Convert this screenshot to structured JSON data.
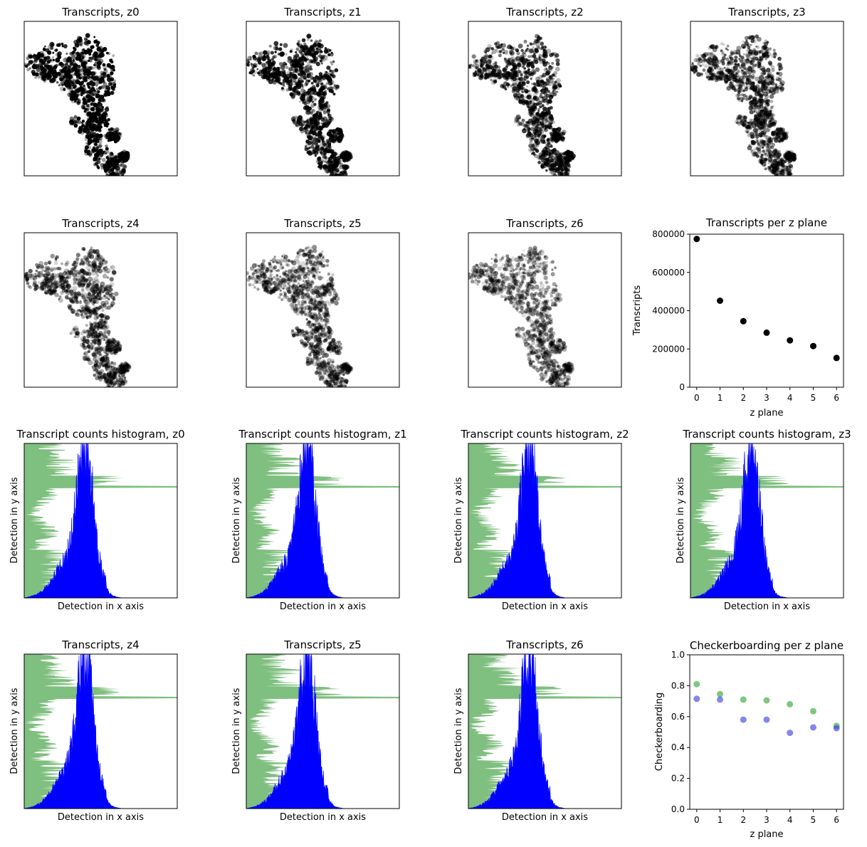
{
  "figure": {
    "image_panels": [
      {
        "title": "Transcripts, z0",
        "density": 1.0
      },
      {
        "title": "Transcripts, z1",
        "density": 0.82
      },
      {
        "title": "Transcripts, z2",
        "density": 0.72
      },
      {
        "title": "Transcripts, z3",
        "density": 0.64
      },
      {
        "title": "Transcripts, z4",
        "density": 0.56
      },
      {
        "title": "Transcripts, z5",
        "density": 0.5
      },
      {
        "title": "Transcripts, z6",
        "density": 0.42
      }
    ],
    "histogram_panels": [
      {
        "title": "Transcript counts histogram, z0",
        "xlabel": "Detection in x axis",
        "ylabel": "Detection in y axis"
      },
      {
        "title": "Transcript counts histogram, z1",
        "xlabel": "Detection in x axis",
        "ylabel": "Detection in y axis"
      },
      {
        "title": "Transcript counts histogram, z2",
        "xlabel": "Detection in x axis",
        "ylabel": "Detection in y axis"
      },
      {
        "title": "Transcript counts histogram, z3",
        "xlabel": "Detection in x axis",
        "ylabel": "Detection in y axis"
      },
      {
        "title": "Transcripts, z4",
        "xlabel": "Detection in x axis",
        "ylabel": "Detection in y axis"
      },
      {
        "title": "Transcripts, z5",
        "xlabel": "Detection in x axis",
        "ylabel": "Detection in y axis"
      },
      {
        "title": "Transcripts, z6",
        "xlabel": "Detection in x axis",
        "ylabel": "Detection in y axis"
      }
    ],
    "colors": {
      "x_hist": "#0000ff",
      "y_hist": "#7fbf7f",
      "black": "#000000",
      "green_pts": "#2ca02c",
      "blue_pts": "#3333e6"
    }
  },
  "chart_data": [
    {
      "type": "scatter",
      "title": "Transcripts per z plane",
      "xlabel": "z plane",
      "ylabel": "Transcripts",
      "x": [
        0,
        1,
        2,
        3,
        4,
        5,
        6
      ],
      "series": [
        {
          "values": [
            775000,
            452000,
            345000,
            285000,
            245000,
            215000,
            153000
          ],
          "color": "#000000"
        }
      ],
      "xlim": [
        -0.3,
        6.3
      ],
      "ylim": [
        0,
        800000
      ],
      "xticks": [
        "0",
        "1",
        "2",
        "3",
        "4",
        "5",
        "6"
      ],
      "yticks": [
        "0",
        "200000",
        "400000",
        "600000",
        "800000"
      ]
    },
    {
      "type": "scatter",
      "title": "Checkerboarding per z plane",
      "xlabel": "z plane",
      "ylabel": "Checkerboarding",
      "x": [
        0,
        1,
        2,
        3,
        4,
        5,
        6
      ],
      "series": [
        {
          "values": [
            0.81,
            0.745,
            0.71,
            0.705,
            0.68,
            0.635,
            0.54
          ],
          "color": "#2ca02c"
        },
        {
          "values": [
            0.715,
            0.71,
            0.58,
            0.58,
            0.495,
            0.53,
            0.525
          ],
          "color": "#3333e6"
        }
      ],
      "xlim": [
        -0.3,
        6.3
      ],
      "ylim": [
        0,
        1.0
      ],
      "xticks": [
        "0",
        "1",
        "2",
        "3",
        "4",
        "5",
        "6"
      ],
      "yticks": [
        "0.0",
        "0.2",
        "0.4",
        "0.6",
        "0.8",
        "1.0"
      ]
    }
  ]
}
